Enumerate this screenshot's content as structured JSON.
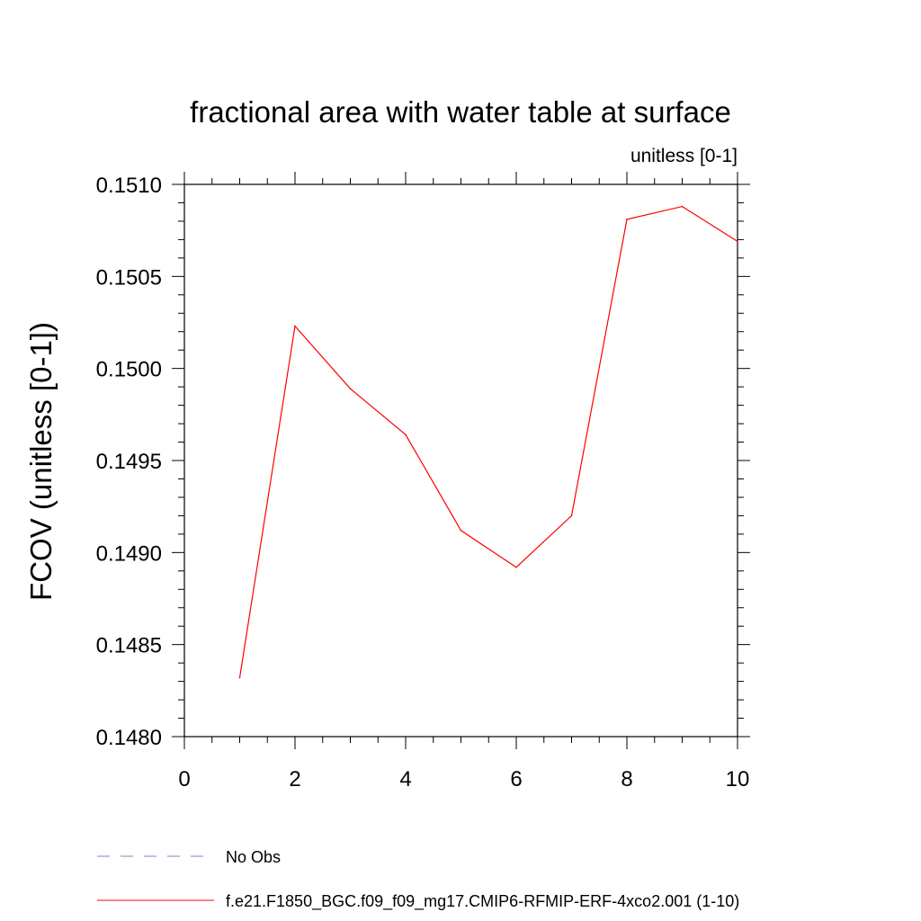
{
  "chart_data": {
    "type": "line",
    "title": "fractional area with water table at surface",
    "subtitle": "unitless [0-1]",
    "xlabel": "",
    "ylabel": "FCOV  (unitless [0-1])",
    "xlim": [
      0,
      10
    ],
    "ylim": [
      0.148,
      0.151
    ],
    "x_ticks": [
      "0",
      "2",
      "4",
      "6",
      "8",
      "10"
    ],
    "y_ticks": [
      "0.1480",
      "0.1485",
      "0.1490",
      "0.1495",
      "0.1500",
      "0.1505",
      "0.1510"
    ],
    "grid": false,
    "legend_position": "bottom",
    "series": [
      {
        "name": "f.e21.F1850_BGC.f09_f09_mg17.CMIP6-RFMIP-ERF-4xco2.001 (1-10)",
        "color": "#ff0000",
        "style": "solid",
        "x": [
          1,
          2,
          3,
          4,
          5,
          6,
          7,
          8,
          9,
          10
        ],
        "y": [
          0.14832,
          0.15023,
          0.14989,
          0.14964,
          0.14912,
          0.14892,
          0.1492,
          0.15081,
          0.15088,
          0.15069
        ]
      }
    ],
    "legend": [
      {
        "label": "No Obs",
        "color": "#8080c0",
        "style": "dashed"
      },
      {
        "label": "f.e21.F1850_BGC.f09_f09_mg17.CMIP6-RFMIP-ERF-4xco2.001 (1-10)",
        "color": "#ff0000",
        "style": "solid"
      }
    ]
  }
}
